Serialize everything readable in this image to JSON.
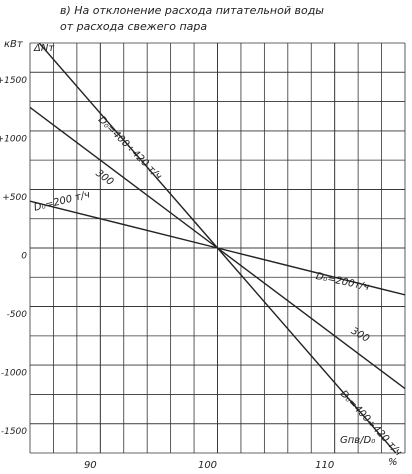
{
  "chart_data": {
    "type": "line",
    "title": "в) На отклонение расхода питательной воды",
    "subtitle": "от расхода свежего пара",
    "y_unit": "кВт",
    "y_label": "ΔNт",
    "x_label": "Gпв/D₀",
    "x_unit": "%",
    "xlim": [
      84,
      116
    ],
    "xticks": [
      90,
      100,
      110
    ],
    "ylim": [
      -1750,
      1750
    ],
    "yticks": [
      {
        "value": 1500,
        "label": "+1500"
      },
      {
        "value": 1000,
        "label": "+1000"
      },
      {
        "value": 500,
        "label": "+500"
      },
      0,
      -500,
      -1000,
      -1500
    ],
    "grid": true,
    "series": [
      {
        "name": "D₀=400÷420 т/ч",
        "color": "#222222",
        "x": [
          84,
          100,
          116
        ],
        "values": [
          1840,
          0,
          -1840
        ]
      },
      {
        "name": "300",
        "color": "#222222",
        "x": [
          84,
          100,
          116
        ],
        "values": [
          1200,
          0,
          -1200
        ]
      },
      {
        "name": "D₀=200 т/ч",
        "color": "#222222",
        "x": [
          84,
          100,
          116
        ],
        "values": [
          400,
          0,
          -400
        ]
      }
    ],
    "annotations": [
      "D₀=400÷420 т/ч",
      "300",
      "D₀=200т/ч"
    ]
  }
}
